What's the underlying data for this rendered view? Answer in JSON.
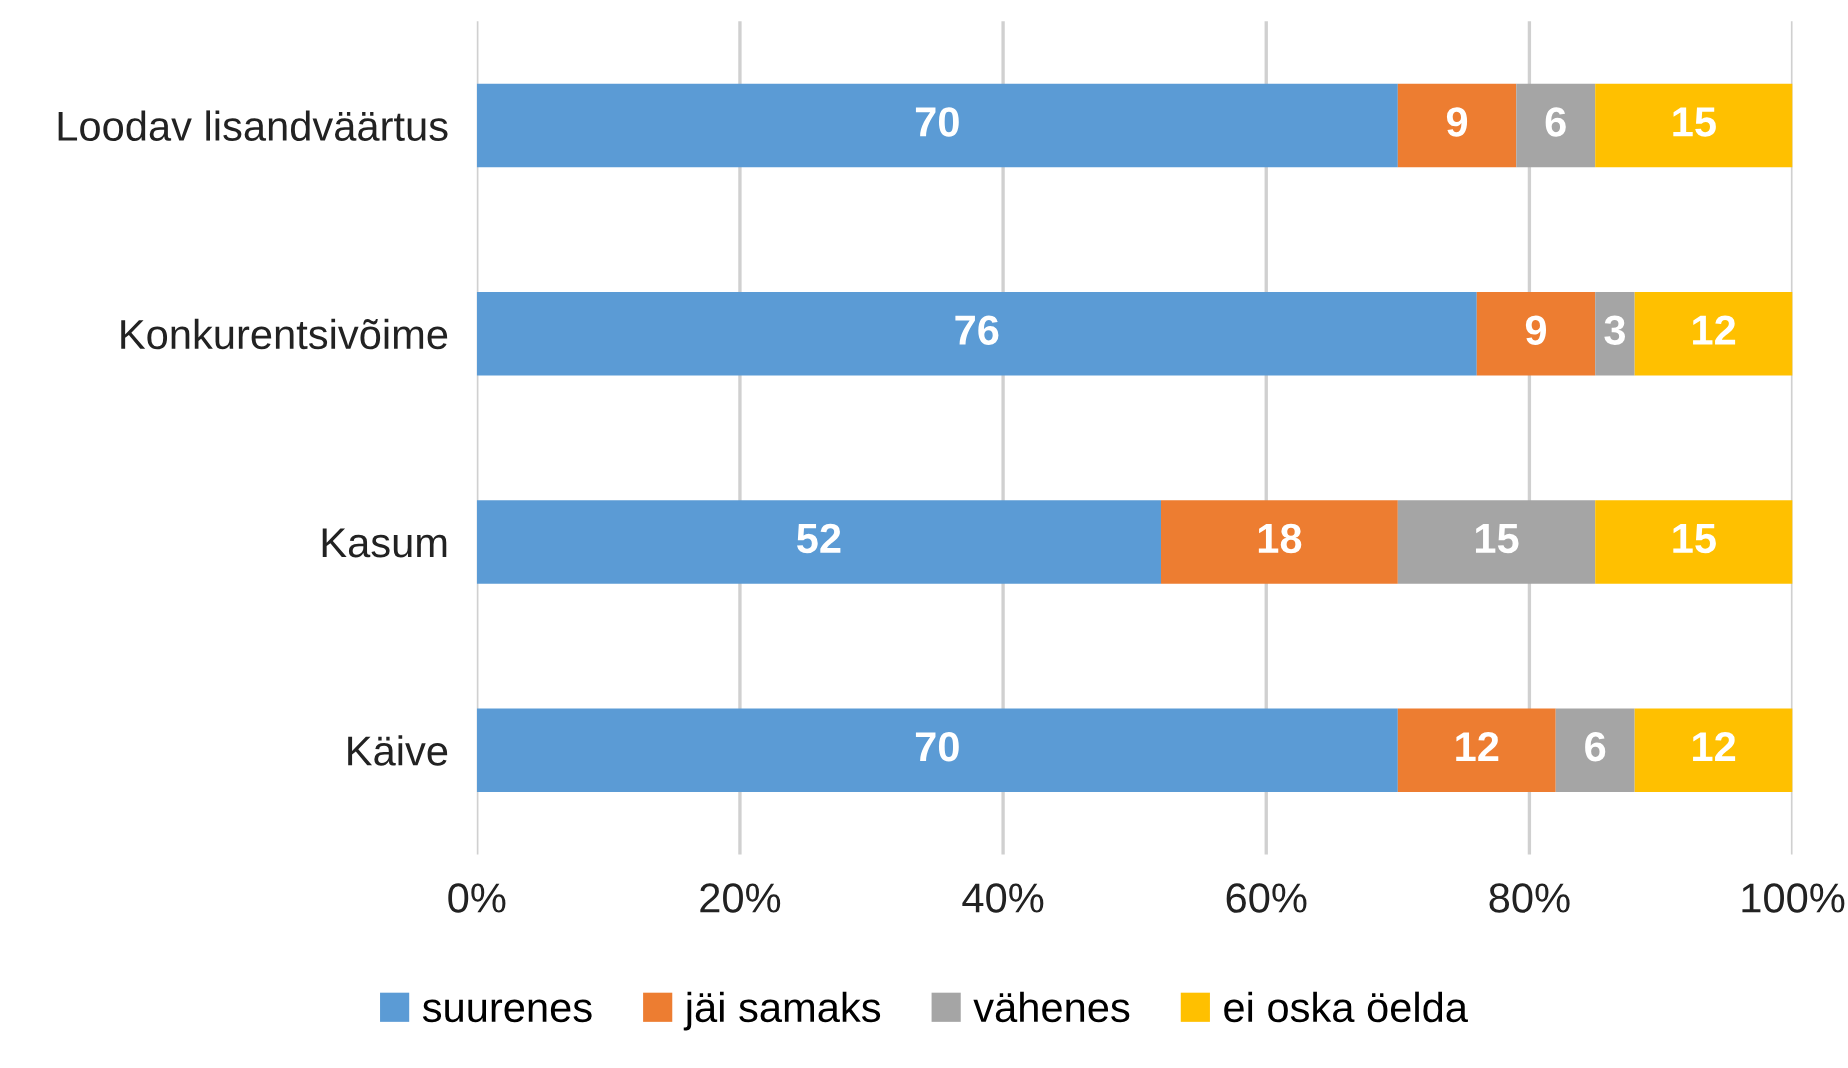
{
  "chart_data": {
    "type": "bar",
    "orientation": "horizontal",
    "stacked": true,
    "data_labels": true,
    "grid": "x",
    "legend": "bottom",
    "categories": [
      "Loodav lisandväärtus",
      "Konkurentsivõime",
      "Kasum",
      "Käive"
    ],
    "series": [
      {
        "name": "suurenes",
        "color": "#5b9bd5",
        "values": [
          70,
          76,
          52,
          70
        ]
      },
      {
        "name": "jäi samaks",
        "color": "#ed7d31",
        "values": [
          9,
          9,
          18,
          12
        ]
      },
      {
        "name": "vähenes",
        "color": "#a5a5a5",
        "values": [
          6,
          3,
          15,
          6
        ]
      },
      {
        "name": "ei oska öelda",
        "color": "#ffc000",
        "values": [
          15,
          12,
          15,
          12
        ]
      }
    ],
    "xlim": [
      0,
      100
    ],
    "xticks": [
      {
        "value": 0,
        "label": "0%"
      },
      {
        "value": 20,
        "label": "20%"
      },
      {
        "value": 40,
        "label": "40%"
      },
      {
        "value": 60,
        "label": "60%"
      },
      {
        "value": 80,
        "label": "80%"
      },
      {
        "value": 100,
        "label": "100%"
      }
    ]
  }
}
